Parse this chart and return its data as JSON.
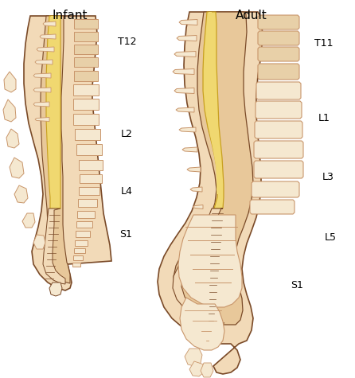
{
  "title_infant": "Infant",
  "title_adult": "Adult",
  "bg_color": "#ffffff",
  "skin_light": "#f2dab8",
  "skin_mid": "#e8c89a",
  "skin_dark": "#d4a86a",
  "bone_light": "#f5e8d0",
  "bone_mid": "#e8d0a8",
  "bone_dark": "#c8956a",
  "yellow_light": "#f0d870",
  "yellow_dark": "#c8a020",
  "outline": "#7a4a28",
  "label_color": "#000000",
  "infant_labels": [
    [
      "T12",
      148,
      52
    ],
    [
      "L2",
      152,
      168
    ],
    [
      "L4",
      152,
      240
    ],
    [
      "S1",
      150,
      295
    ]
  ],
  "adult_labels": [
    [
      "T11",
      395,
      55
    ],
    [
      "L1",
      400,
      148
    ],
    [
      "L3",
      405,
      222
    ],
    [
      "L5",
      408,
      298
    ],
    [
      "S1",
      365,
      358
    ]
  ]
}
